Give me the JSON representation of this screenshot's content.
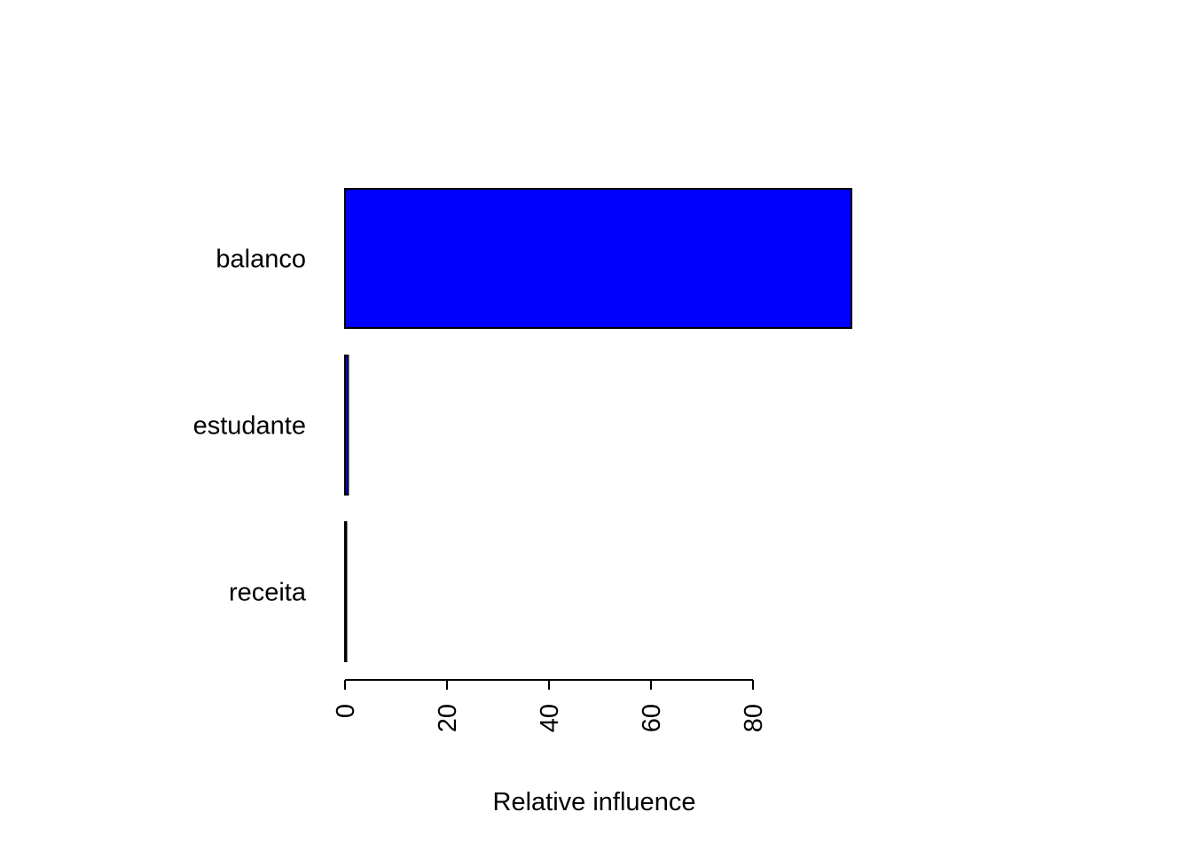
{
  "chart_data": {
    "type": "bar",
    "orientation": "horizontal",
    "categories": [
      "balanco",
      "estudante",
      "receita"
    ],
    "values": [
      99.3,
      0.6,
      0.1
    ],
    "xlabel": "Relative influence",
    "ylabel": "",
    "title": "",
    "xticks": [
      0,
      20,
      40,
      60,
      80
    ],
    "xtick_labels": [
      "0",
      "20",
      "40",
      "60",
      "80"
    ],
    "xlim": [
      0,
      99.3
    ],
    "bar_colors": [
      "#0000ff",
      "#0000ff",
      "#0000ff"
    ],
    "bar_border_color": "#000000",
    "grid": false,
    "legend": "none"
  }
}
